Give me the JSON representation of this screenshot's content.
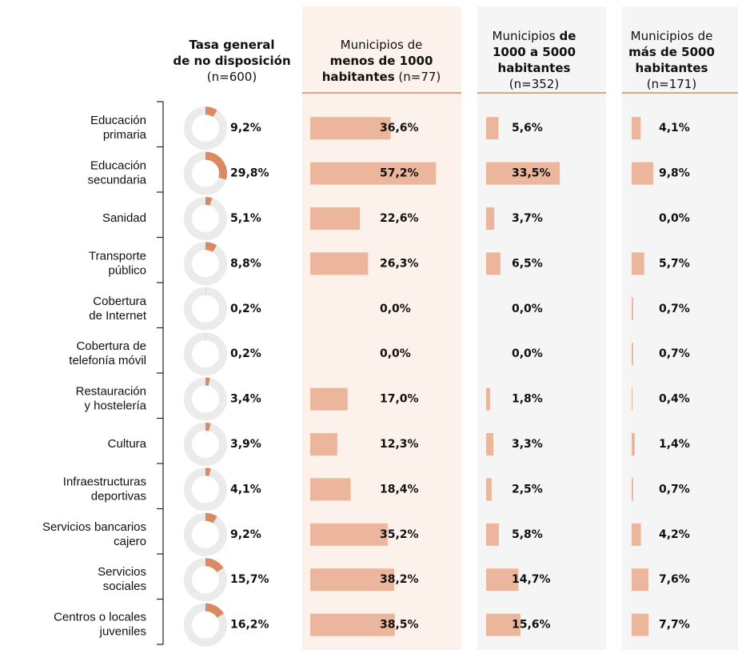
{
  "chart_data": {
    "type": "bar",
    "categories": [
      [
        "Educación",
        "primaria"
      ],
      [
        "Educación",
        "secundaria"
      ],
      [
        "Sanidad"
      ],
      [
        "Transporte",
        "público"
      ],
      [
        "Cobertura",
        "de Internet"
      ],
      [
        "Cobertura de",
        "telefonía móvil"
      ],
      [
        "Restauración",
        "y hostelería"
      ],
      [
        "Cultura"
      ],
      [
        "Infraestructuras",
        "deportivas"
      ],
      [
        "Servicios bancarios",
        "cajero"
      ],
      [
        "Servicios",
        "sociales"
      ],
      [
        "Centros o locales",
        "juveniles"
      ]
    ],
    "series": [
      {
        "type": "donut",
        "color": "#d98a62",
        "track_color": "#ebebeb",
        "name": [
          [
            {
              "text": "Tasa general",
              "bold": true
            }
          ],
          [
            {
              "text": "de no disposición",
              "bold": true
            }
          ],
          [
            {
              "text": "(n=600)",
              "bold": false
            }
          ]
        ],
        "values": [
          9.2,
          29.8,
          5.1,
          8.8,
          0.2,
          0.2,
          3.4,
          3.9,
          4.1,
          9.2,
          15.7,
          16.2
        ],
        "value_labels": [
          "9,2%",
          "29,8%",
          "5,1%",
          "8,8%",
          "0,2%",
          "0,2%",
          "3,4%",
          "3,9%",
          "4,1%",
          "9,2%",
          "15,7%",
          "16,2%"
        ]
      },
      {
        "type": "bar",
        "color": "#ecb69c",
        "background": "#fdf1ec",
        "name": [
          [
            {
              "text": "Municipios de",
              "bold": false
            }
          ],
          [
            {
              "text": "menos de 1000",
              "bold": true
            }
          ],
          [
            {
              "text": "habitantes",
              "bold": true
            },
            {
              "text": " (n=77)",
              "bold": false
            }
          ]
        ],
        "values": [
          36.6,
          57.2,
          22.6,
          26.3,
          0.0,
          0.0,
          17.0,
          12.3,
          18.4,
          35.2,
          38.2,
          38.5
        ],
        "value_labels": [
          "36,6%",
          "57,2%",
          "22,6%",
          "26,3%",
          "0,0%",
          "0,0%",
          "17,0%",
          "12,3%",
          "18,4%",
          "35,2%",
          "38,2%",
          "38,5%"
        ]
      },
      {
        "type": "bar",
        "color": "#ecb69c",
        "background": "#f5f5f5",
        "name": [
          [
            {
              "text": "Municipios ",
              "bold": false
            },
            {
              "text": "de",
              "bold": true
            }
          ],
          [
            {
              "text": "1000 a 5000",
              "bold": true
            }
          ],
          [
            {
              "text": "habitantes",
              "bold": true
            }
          ],
          [
            {
              "text": "(n=352)",
              "bold": false
            }
          ]
        ],
        "values": [
          5.6,
          33.5,
          3.7,
          6.5,
          0.0,
          0.0,
          1.8,
          3.3,
          2.5,
          5.8,
          14.7,
          15.6
        ],
        "value_labels": [
          "5,6%",
          "33,5%",
          "3,7%",
          "6,5%",
          "0,0%",
          "0,0%",
          "1,8%",
          "3,3%",
          "2,5%",
          "5,8%",
          "14,7%",
          "15,6%"
        ]
      },
      {
        "type": "bar",
        "color": "#ecb69c",
        "background": "#f5f5f5",
        "name": [
          [
            {
              "text": "Municipios de",
              "bold": false
            }
          ],
          [
            {
              "text": "más de 5000",
              "bold": true
            }
          ],
          [
            {
              "text": "habitantes",
              "bold": true
            }
          ],
          [
            {
              "text": "(n=171)",
              "bold": false
            }
          ]
        ],
        "values": [
          4.1,
          9.8,
          0.0,
          5.7,
          0.7,
          0.7,
          0.4,
          1.4,
          0.7,
          4.2,
          7.6,
          7.7
        ],
        "value_labels": [
          "4,1%",
          "9,8%",
          "0,0%",
          "5,7%",
          "0,7%",
          "0,7%",
          "0,4%",
          "1,4%",
          "0,7%",
          "4,2%",
          "7,6%",
          "7,7%"
        ]
      }
    ]
  }
}
